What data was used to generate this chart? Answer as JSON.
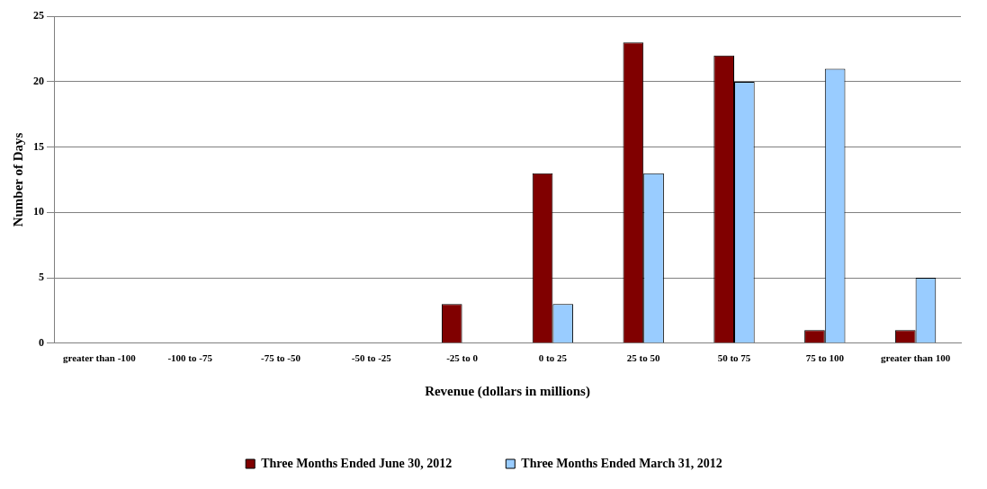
{
  "chart_data": {
    "type": "bar",
    "xlabel": "Revenue (dollars in millions)",
    "ylabel": "Number of Days",
    "categories": [
      "greater than -100",
      "-100 to -75",
      "-75 to -50",
      "-50 to -25",
      "-25 to 0",
      "0 to 25",
      "25 to 50",
      "50 to 75",
      "75 to 100",
      "greater than 100"
    ],
    "series": [
      {
        "name": "Three Months Ended June 30, 2012",
        "color": "#800000",
        "values": [
          0,
          0,
          0,
          0,
          3,
          13,
          23,
          22,
          1,
          1
        ]
      },
      {
        "name": "Three Months Ended March 31, 2012",
        "color": "#99ccff",
        "values": [
          0,
          0,
          0,
          0,
          0,
          3,
          13,
          20,
          21,
          5
        ]
      }
    ],
    "ylim": [
      0,
      25
    ],
    "yticks": [
      0,
      5,
      10,
      15,
      20,
      25
    ],
    "grid": "y",
    "legend": "bottom"
  }
}
